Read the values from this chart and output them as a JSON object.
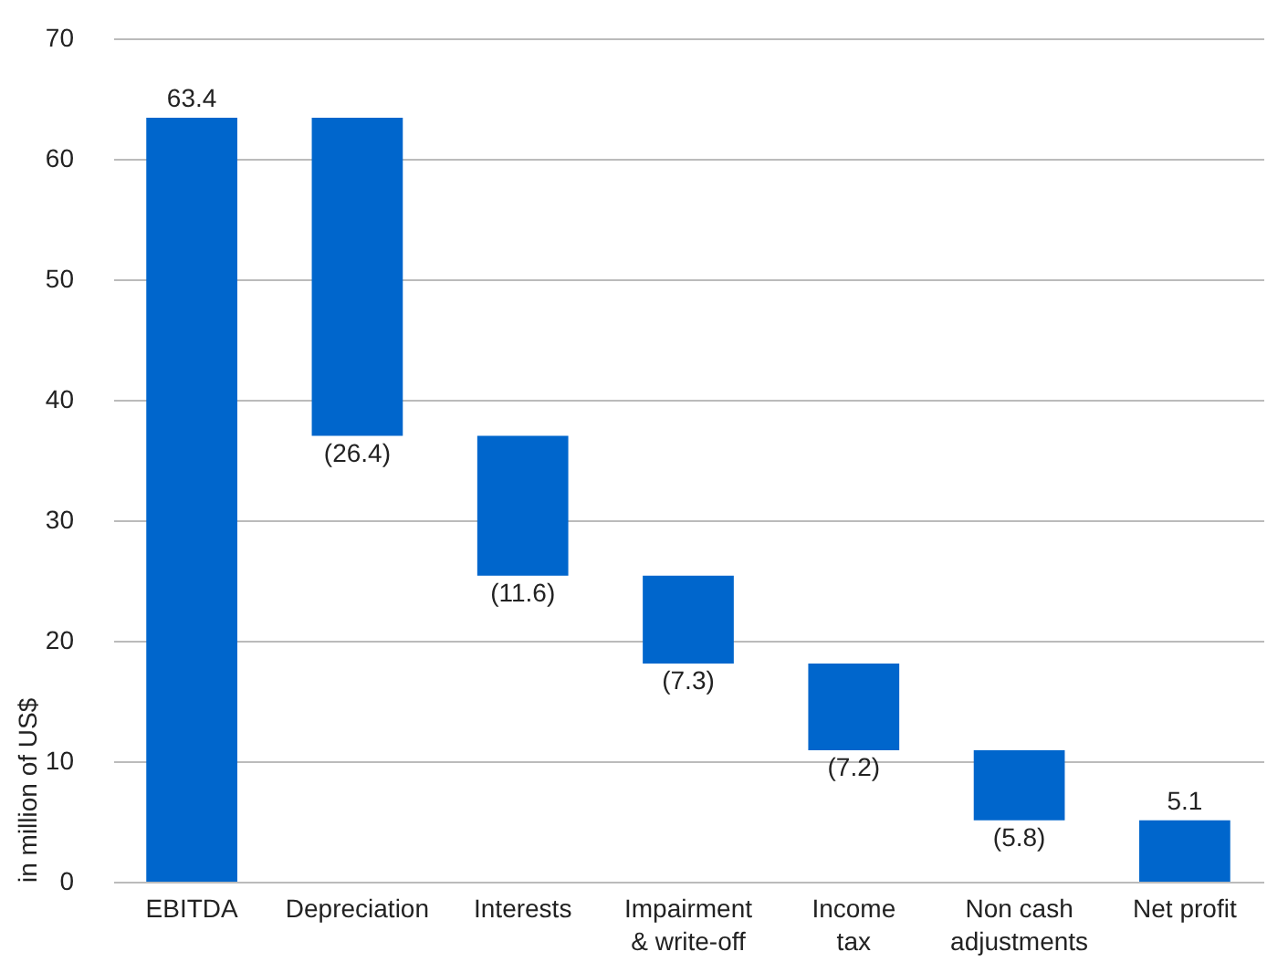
{
  "chart_data": {
    "type": "bar",
    "ylabel": "in million of US$",
    "categories": [
      "EBITDA",
      "Depreciation",
      "Interests",
      "Impairment\n& write-off",
      "Income\ntax",
      "Non cash\nadjustments",
      "Net profit"
    ],
    "values": [
      63.4,
      -26.4,
      -11.6,
      -7.3,
      -7.2,
      -5.8,
      5.1
    ],
    "base": [
      0,
      63.4,
      37.0,
      25.4,
      18.1,
      10.9,
      0
    ],
    "value_labels": [
      "63.4",
      "(26.4)",
      "(11.6)",
      "(7.3)",
      "(7.2)",
      "(5.8)",
      "5.1"
    ],
    "color": "#0066cc",
    "ylim": [
      0,
      70
    ],
    "yticks": [
      0,
      10,
      20,
      30,
      40,
      50,
      60,
      70
    ],
    "grid": "y"
  }
}
